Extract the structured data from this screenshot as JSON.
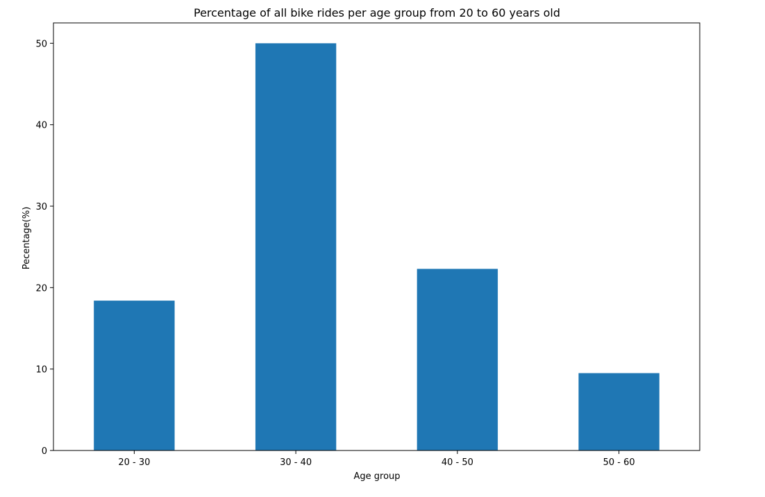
{
  "chart_data": {
    "type": "bar",
    "title": "Percentage of all bike rides per age group from 20 to 60 years old",
    "xlabel": "Age group",
    "ylabel": "Pecentage(%)",
    "categories": [
      "20 - 30",
      "30 - 40",
      "40 - 50",
      "50 - 60"
    ],
    "values": [
      18.4,
      50.0,
      22.3,
      9.5
    ],
    "ylim": [
      0,
      52.5
    ],
    "yticks": [
      0,
      10,
      20,
      30,
      40,
      50
    ],
    "bar_color": "#1f77b4",
    "grid": false,
    "legend": "none"
  }
}
